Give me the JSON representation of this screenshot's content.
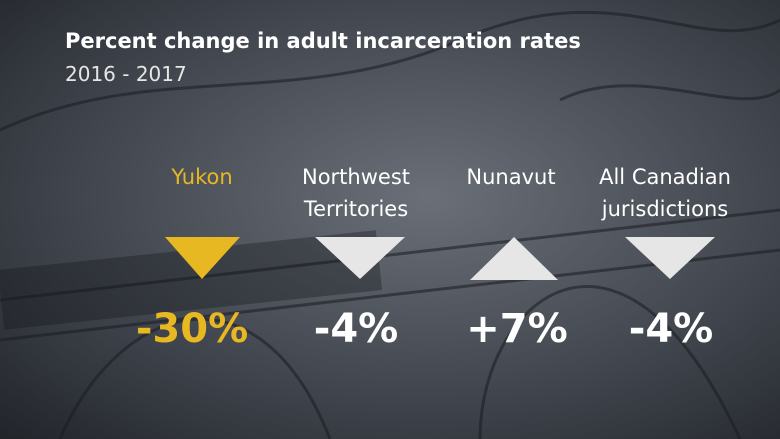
{
  "header": {
    "title": "Percent change in adult incarceration rates",
    "subtitle": "2016 - 2017"
  },
  "items": [
    {
      "label": [
        "Yukon"
      ],
      "value": "-30%"
    },
    {
      "label": [
        "Northwest",
        "Territories"
      ],
      "value": "-4%"
    },
    {
      "label": [
        "Nunavut"
      ],
      "value": "+7%"
    },
    {
      "label": [
        "All Canadian",
        "jurisdictions"
      ],
      "value": "-4%"
    }
  ]
}
